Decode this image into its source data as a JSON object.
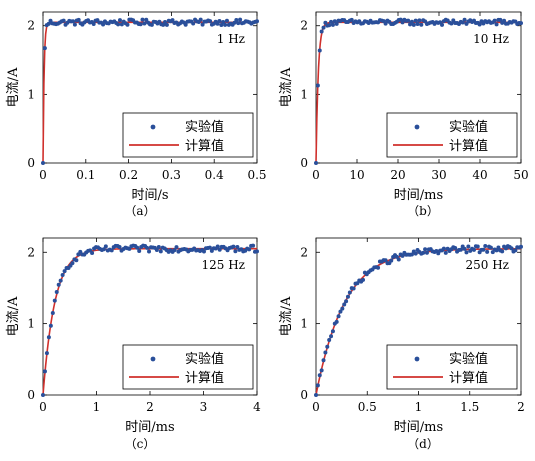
{
  "chart_data": [
    {
      "id": "a",
      "type": "scatter+line",
      "caption": "（a）",
      "freq_label": "1 Hz",
      "xlabel": "时间/s",
      "ylabel": "电流/A",
      "xlim": [
        0,
        0.5
      ],
      "ylim": [
        0,
        2.2
      ],
      "xticks": [
        0,
        0.1,
        0.2,
        0.3,
        0.4,
        0.5
      ],
      "xtick_labels": [
        "0",
        "0.1",
        "0.2",
        "0.3",
        "0.4",
        "0.5"
      ],
      "yticks": [
        0,
        1,
        2
      ],
      "ytick_labels": [
        "0",
        "1",
        "2"
      ],
      "legend_position": "lower-right",
      "legend": [
        "实验值",
        "计算值"
      ],
      "steady": 2.05,
      "tau": 0.0025,
      "jitter": 0.04,
      "n_points": 115,
      "calc_color": "#d0302c",
      "exp_color": "#2a4f9a"
    },
    {
      "id": "b",
      "type": "scatter+line",
      "caption": "（b）",
      "freq_label": "10 Hz",
      "xlabel": "时间/ms",
      "ylabel": "电流/A",
      "xlim": [
        0,
        50
      ],
      "ylim": [
        0,
        2.2
      ],
      "xticks": [
        0,
        10,
        20,
        30,
        40,
        50
      ],
      "xtick_labels": [
        "0",
        "10",
        "20",
        "30",
        "40",
        "50"
      ],
      "yticks": [
        0,
        1,
        2
      ],
      "ytick_labels": [
        "0",
        "1",
        "2"
      ],
      "legend_position": "lower-right",
      "legend": [
        "实验值",
        "计算值"
      ],
      "steady": 2.05,
      "tau": 0.55,
      "jitter": 0.04,
      "n_points": 110,
      "calc_color": "#d0302c",
      "exp_color": "#2a4f9a"
    },
    {
      "id": "c",
      "type": "scatter+line",
      "caption": "（c）",
      "freq_label": "125 Hz",
      "xlabel": "时间/ms",
      "ylabel": "电流/A",
      "xlim": [
        0,
        4
      ],
      "ylim": [
        0,
        2.2
      ],
      "xticks": [
        0,
        1,
        2,
        3,
        4
      ],
      "xtick_labels": [
        "0",
        "1",
        "2",
        "3",
        "4"
      ],
      "yticks": [
        0,
        1,
        2
      ],
      "ytick_labels": [
        "0",
        "1",
        "2"
      ],
      "legend_position": "lower-right",
      "legend": [
        "实验值",
        "计算值"
      ],
      "steady": 2.05,
      "tau": 0.22,
      "jitter": 0.045,
      "n_points": 110,
      "calc_color": "#d0302c",
      "exp_color": "#2a4f9a"
    },
    {
      "id": "d",
      "type": "scatter+line",
      "caption": "（d）",
      "freq_label": "250 Hz",
      "xlabel": "时间/ms",
      "ylabel": "电流/A",
      "xlim": [
        0,
        2
      ],
      "ylim": [
        0,
        2.2
      ],
      "xticks": [
        0,
        0.5,
        1,
        1.5,
        2
      ],
      "xtick_labels": [
        "0",
        "0.5",
        "1",
        "1.5",
        "2"
      ],
      "yticks": [
        0,
        1,
        2
      ],
      "ytick_labels": [
        "0",
        "1",
        "2"
      ],
      "legend_position": "lower-right",
      "legend": [
        "实验值",
        "计算值"
      ],
      "steady": 2.05,
      "tau": 0.28,
      "jitter": 0.045,
      "n_points": 110,
      "calc_color": "#d0302c",
      "exp_color": "#2a4f9a"
    }
  ]
}
